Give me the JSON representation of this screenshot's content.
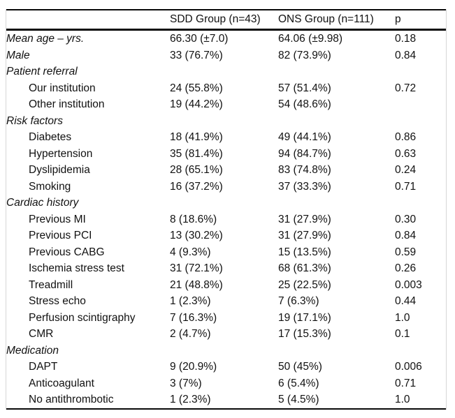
{
  "colors": {
    "rule": "#0a0a0a",
    "edge_border": "#d6d6d6",
    "text": "#111111",
    "background": "#ffffff"
  },
  "table": {
    "columns": [
      "",
      "SDD Group (n=43)",
      "ONS Group (n=111)",
      "p"
    ],
    "rows": [
      {
        "label": "Mean age – yrs.",
        "italic": true,
        "indent": false,
        "sdd": "66.30 (±7.0)",
        "ons": "64.06 (±9.98)",
        "p": "0.18"
      },
      {
        "label": "Male",
        "italic": true,
        "indent": false,
        "sdd": "33 (76.7%)",
        "ons": "82 (73.9%)",
        "p": "0.84"
      },
      {
        "label": "Patient referral",
        "italic": true,
        "indent": false,
        "section": true,
        "sdd": "",
        "ons": "",
        "p": ""
      },
      {
        "label": "Our institution",
        "italic": false,
        "indent": true,
        "sdd": "24 (55.8%)",
        "ons": "57 (51.4%)",
        "p": "0.72"
      },
      {
        "label": "Other institution",
        "italic": false,
        "indent": true,
        "sdd": "19 (44.2%)",
        "ons": "54 (48.6%)",
        "p": ""
      },
      {
        "label": "Risk factors",
        "italic": true,
        "indent": false,
        "section": true,
        "sdd": "",
        "ons": "",
        "p": ""
      },
      {
        "label": "Diabetes",
        "italic": false,
        "indent": true,
        "sdd": "18 (41.9%)",
        "ons": "49 (44.1%)",
        "p": "0.86"
      },
      {
        "label": "Hypertension",
        "italic": false,
        "indent": true,
        "sdd": "35 (81.4%)",
        "ons": "94 (84.7%)",
        "p": "0.63"
      },
      {
        "label": "Dyslipidemia",
        "italic": false,
        "indent": true,
        "sdd": "28 (65.1%)",
        "ons": "83 (74.8%)",
        "p": "0.24"
      },
      {
        "label": "Smoking",
        "italic": false,
        "indent": true,
        "sdd": "16 (37.2%)",
        "ons": "37 (33.3%)",
        "p": "0.71"
      },
      {
        "label": "Cardiac history",
        "italic": true,
        "indent": false,
        "section": true,
        "sdd": "",
        "ons": "",
        "p": ""
      },
      {
        "label": "Previous MI",
        "italic": false,
        "indent": true,
        "sdd": "8 (18.6%)",
        "ons": "31 (27.9%)",
        "p": "0.30"
      },
      {
        "label": "Previous PCI",
        "italic": false,
        "indent": true,
        "sdd": "13 (30.2%)",
        "ons": "31 (27.9%)",
        "p": "0.84"
      },
      {
        "label": "Previous CABG",
        "italic": false,
        "indent": true,
        "sdd": "4 (9.3%)",
        "ons": "15 (13.5%)",
        "p": "0.59"
      },
      {
        "label": "Ischemia stress test",
        "italic": false,
        "indent": true,
        "sdd": "31 (72.1%)",
        "ons": "68 (61.3%)",
        "p": "0.26"
      },
      {
        "label": "Treadmill",
        "italic": false,
        "indent": true,
        "sdd": "21 (48.8%)",
        "ons": "25 (22.5%)",
        "p": "0.003"
      },
      {
        "label": "Stress echo",
        "italic": false,
        "indent": true,
        "sdd": "1 (2.3%)",
        "ons": "7 (6.3%)",
        "p": "0.44"
      },
      {
        "label": "Perfusion scintigraphy",
        "italic": false,
        "indent": true,
        "sdd": "7 (16.3%)",
        "ons": "19 (17.1%)",
        "p": "1.0"
      },
      {
        "label": "CMR",
        "italic": false,
        "indent": true,
        "sdd": "2 (4.7%)",
        "ons": "17 (15.3%)",
        "p": "0.1"
      },
      {
        "label": "Medication",
        "italic": true,
        "indent": false,
        "section": true,
        "sdd": "",
        "ons": "",
        "p": ""
      },
      {
        "label": "DAPT",
        "italic": false,
        "indent": true,
        "sdd": "9 (20.9%)",
        "ons": "50 (45%)",
        "p": "0.006"
      },
      {
        "label": "Anticoagulant",
        "italic": false,
        "indent": true,
        "sdd": "3 (7%)",
        "ons": "6 (5.4%)",
        "p": "0.71"
      },
      {
        "label": "No antithrombotic",
        "italic": false,
        "indent": true,
        "sdd": "1 (2.3%)",
        "ons": "5 (4.5%)",
        "p": "1.0"
      }
    ]
  }
}
